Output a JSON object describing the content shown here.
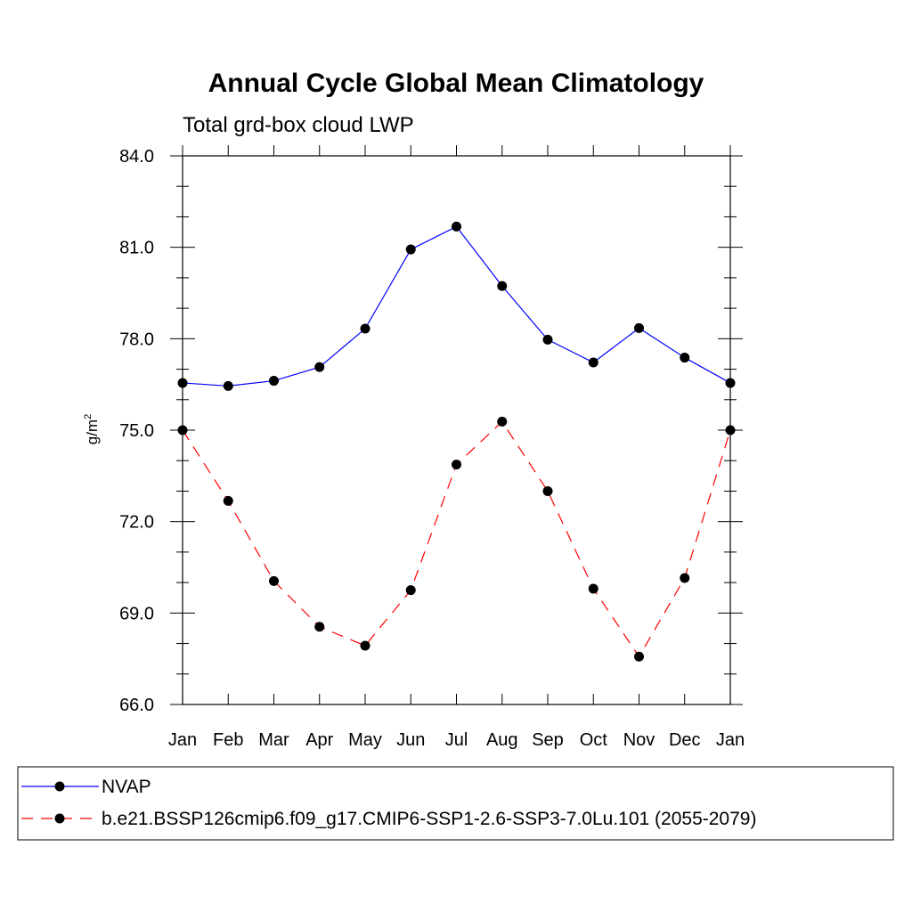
{
  "chart_data": {
    "type": "line",
    "title": "Annual Cycle Global Mean Climatology",
    "subtitle": "Total grd-box cloud LWP",
    "xlabel": "",
    "ylabel": "g/m",
    "ylabel_superscript": "2",
    "categories": [
      "Jan",
      "Feb",
      "Mar",
      "Apr",
      "May",
      "Jun",
      "Jul",
      "Aug",
      "Sep",
      "Oct",
      "Nov",
      "Dec",
      "Jan"
    ],
    "ylim": [
      66.0,
      84.0
    ],
    "yticks": [
      66.0,
      69.0,
      72.0,
      75.0,
      78.0,
      81.0,
      84.0
    ],
    "ytick_labels": [
      "66.0",
      "69.0",
      "72.0",
      "75.0",
      "78.0",
      "81.0",
      "84.0"
    ],
    "yminor_step": 1.0,
    "grid": false,
    "legend_position": "bottom",
    "series": [
      {
        "name": "NVAP",
        "color": "#0000ff",
        "dash": "solid",
        "marker": "filled-circle",
        "values": [
          76.55,
          76.45,
          76.62,
          77.07,
          78.33,
          80.93,
          81.68,
          79.73,
          77.97,
          77.22,
          78.35,
          77.38,
          76.55
        ]
      },
      {
        "name": "b.e21.BSSP126cmip6.f09_g17.CMIP6-SSP1-2.6-SSP3-7.0Lu.101 (2055-2079)",
        "color": "#ff0000",
        "dash": "dashed",
        "marker": "filled-circle",
        "values": [
          75.0,
          72.68,
          70.05,
          68.55,
          67.93,
          69.75,
          73.87,
          75.28,
          73.0,
          69.8,
          67.57,
          70.15,
          75.0
        ]
      }
    ]
  }
}
